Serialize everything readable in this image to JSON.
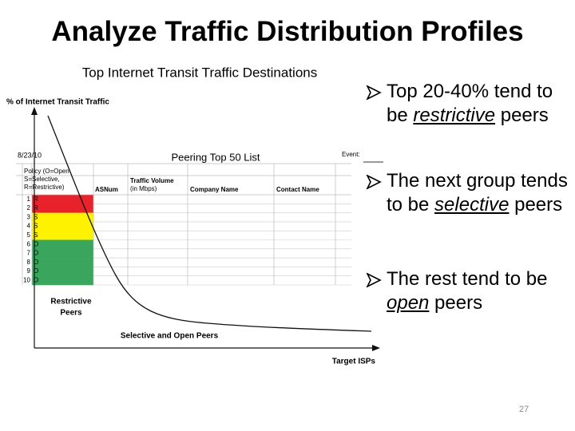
{
  "title": "Analyze Traffic Distribution Profiles",
  "figure": {
    "title": "Top Internet Transit Traffic Destinations",
    "y_axis_label": "% of Internet Transit Traffic",
    "x_axis_label": "Target ISPs",
    "date": "8/23/10",
    "list_title": "Peering Top 50 List",
    "event_label": "Event:",
    "headers": {
      "policy": [
        "Policy (O=Open",
        "S=Selective,",
        "R=Restrictive)"
      ],
      "asnum": "ASNum",
      "traffic": [
        "Traffic Volume",
        "(in Mbps)"
      ],
      "company": "Company Name",
      "contact": "Contact Name"
    },
    "rows": [
      {
        "number": "1",
        "policy": "R"
      },
      {
        "number": "2",
        "policy": "R"
      },
      {
        "number": "3",
        "policy": "S"
      },
      {
        "number": "4",
        "policy": "S"
      },
      {
        "number": "5",
        "policy": "S"
      },
      {
        "number": "6",
        "policy": "O"
      },
      {
        "number": "7",
        "policy": "O"
      },
      {
        "number": "8",
        "policy": "O"
      },
      {
        "number": "9",
        "policy": "O"
      },
      {
        "number": "10",
        "policy": "O"
      }
    ],
    "annotations": {
      "restrictive": [
        "Restrictive",
        "Peers"
      ],
      "selective_open": "Selective and Open Peers"
    }
  },
  "bullets": [
    [
      {
        "text": "Top 20-40% tend to be "
      },
      {
        "text": "restrictive",
        "emphasis": true
      },
      {
        "text": " peers"
      }
    ],
    [
      {
        "text": "The next group tends to be "
      },
      {
        "text": "selective",
        "emphasis": true
      },
      {
        "text": " peers"
      }
    ],
    [
      {
        "text": "The rest tend to be "
      },
      {
        "text": "open",
        "emphasis": true
      },
      {
        "text": " peers"
      }
    ]
  ],
  "page_number": "27"
}
